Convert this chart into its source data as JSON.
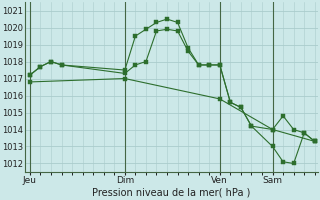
{
  "background_color": "#cce8e8",
  "grid_color": "#aacccc",
  "line_color": "#2d6e2d",
  "marker_color": "#2d6e2d",
  "xlabel": "Pression niveau de la mer( hPa )",
  "ylim": [
    1011.5,
    1021.5
  ],
  "yticks": [
    1012,
    1013,
    1014,
    1015,
    1016,
    1017,
    1018,
    1019,
    1020,
    1021
  ],
  "day_labels": [
    "Jeu",
    "Dim",
    "Ven",
    "Sam"
  ],
  "day_positions": [
    0,
    9,
    18,
    23
  ],
  "xlim": [
    0,
    27
  ],
  "series1": [
    [
      0,
      1017.2
    ],
    [
      1,
      1017.7
    ],
    [
      2,
      1018.0
    ],
    [
      3,
      1017.8
    ],
    [
      9,
      1017.5
    ],
    [
      10,
      1019.5
    ],
    [
      11,
      1019.9
    ],
    [
      12,
      1020.3
    ],
    [
      13,
      1020.5
    ],
    [
      14,
      1020.3
    ],
    [
      15,
      1018.8
    ],
    [
      16,
      1017.8
    ],
    [
      17,
      1017.8
    ],
    [
      18,
      1017.8
    ],
    [
      19,
      1015.6
    ],
    [
      20,
      1015.3
    ],
    [
      21,
      1014.2
    ],
    [
      23,
      1014.0
    ],
    [
      24,
      1014.8
    ],
    [
      25,
      1014.0
    ],
    [
      26,
      1013.8
    ],
    [
      27,
      1013.3
    ]
  ],
  "series2": [
    [
      0,
      1017.2
    ],
    [
      1,
      1017.7
    ],
    [
      2,
      1018.0
    ],
    [
      3,
      1017.8
    ],
    [
      9,
      1017.3
    ],
    [
      10,
      1017.8
    ],
    [
      11,
      1018.0
    ],
    [
      12,
      1019.8
    ],
    [
      13,
      1019.9
    ],
    [
      14,
      1019.8
    ],
    [
      15,
      1018.6
    ],
    [
      16,
      1017.8
    ],
    [
      17,
      1017.8
    ],
    [
      18,
      1017.8
    ],
    [
      19,
      1015.6
    ],
    [
      20,
      1015.3
    ],
    [
      21,
      1014.2
    ],
    [
      23,
      1013.0
    ],
    [
      24,
      1012.1
    ],
    [
      25,
      1012.0
    ],
    [
      26,
      1013.8
    ],
    [
      27,
      1013.3
    ]
  ],
  "series3": [
    [
      0,
      1016.8
    ],
    [
      9,
      1017.0
    ],
    [
      18,
      1015.8
    ],
    [
      23,
      1014.0
    ],
    [
      27,
      1013.3
    ]
  ]
}
